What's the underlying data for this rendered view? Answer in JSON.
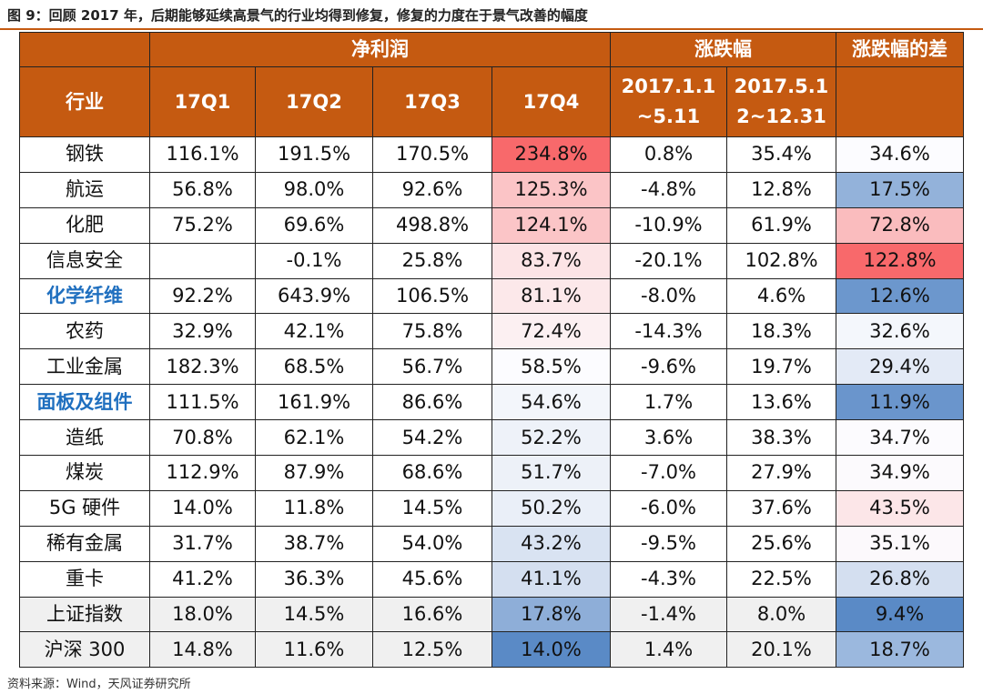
{
  "title": "图 9：回顾 2017 年，后期能够延续高景气的行业均得到修复，修复的力度在于景气改善的幅度",
  "source": "资料来源：Wind，天风证券研究所",
  "header": {
    "group_net_profit": "净利润",
    "group_change": "涨跌幅",
    "group_diff": "涨跌幅的差",
    "industry": "行业",
    "q1": "17Q1",
    "q2": "17Q2",
    "q3": "17Q3",
    "q4": "17Q4",
    "period1_line1": "2017.1.1",
    "period1_line2": "~5.11",
    "period2_line1": "2017.5.1",
    "period2_line2": "2~12.31"
  },
  "colors": {
    "header_bg": "#c55a11",
    "highlight_text": "#1f6fbf",
    "index_row_bg": "#f0f0f0"
  },
  "rows": [
    {
      "industry": "钢铁",
      "q1": "116.1%",
      "q2": "191.5%",
      "q3": "170.5%",
      "q4": "234.8%",
      "c1": "0.8%",
      "c2": "35.4%",
      "diff": "34.6%",
      "highlight": false,
      "index": false,
      "q4_color": "#f8696b",
      "diff_color": "#fcfcff"
    },
    {
      "industry": "航运",
      "q1": "56.8%",
      "q2": "98.0%",
      "q3": "92.6%",
      "q4": "125.3%",
      "c1": "-4.8%",
      "c2": "12.8%",
      "diff": "17.5%",
      "highlight": false,
      "index": false,
      "q4_color": "#fbc4c6",
      "diff_color": "#93b2da"
    },
    {
      "industry": "化肥",
      "q1": "75.2%",
      "q2": "69.6%",
      "q3": "498.8%",
      "q4": "124.1%",
      "c1": "-10.9%",
      "c2": "61.9%",
      "diff": "72.8%",
      "highlight": false,
      "index": false,
      "q4_color": "#fbc5c7",
      "diff_color": "#fabcbe"
    },
    {
      "industry": "信息安全",
      "q1": "",
      "q2": "-0.1%",
      "q3": "25.8%",
      "q4": "83.7%",
      "c1": "-20.1%",
      "c2": "102.8%",
      "diff": "122.8%",
      "highlight": false,
      "index": false,
      "q4_color": "#fce4e6",
      "diff_color": "#f8696b"
    },
    {
      "industry": "化学纤维",
      "q1": "92.2%",
      "q2": "643.9%",
      "q3": "106.5%",
      "q4": "81.1%",
      "c1": "-8.0%",
      "c2": "4.6%",
      "diff": "12.6%",
      "highlight": true,
      "index": false,
      "q4_color": "#fce8ea",
      "diff_color": "#6c97cd"
    },
    {
      "industry": "农药",
      "q1": "32.9%",
      "q2": "42.1%",
      "q3": "75.8%",
      "q4": "72.4%",
      "c1": "-14.3%",
      "c2": "18.3%",
      "diff": "32.6%",
      "highlight": false,
      "index": false,
      "q4_color": "#fcf0f2",
      "diff_color": "#f4f7fc"
    },
    {
      "industry": "工业金属",
      "q1": "182.3%",
      "q2": "68.5%",
      "q3": "56.7%",
      "q4": "58.5%",
      "c1": "-9.6%",
      "c2": "19.7%",
      "diff": "29.4%",
      "highlight": false,
      "index": false,
      "q4_color": "#fcfcff",
      "diff_color": "#e3eaf6"
    },
    {
      "industry": "面板及组件",
      "q1": "111.5%",
      "q2": "161.9%",
      "q3": "86.6%",
      "q4": "54.6%",
      "c1": "1.7%",
      "c2": "13.6%",
      "diff": "11.9%",
      "highlight": true,
      "index": false,
      "q4_color": "#f3f6fb",
      "diff_color": "#6a95cc"
    },
    {
      "industry": "造纸",
      "q1": "70.8%",
      "q2": "62.1%",
      "q3": "54.2%",
      "q4": "52.2%",
      "c1": "3.6%",
      "c2": "38.3%",
      "diff": "34.7%",
      "highlight": false,
      "index": false,
      "q4_color": "#eef2f9",
      "diff_color": "#fcfbfe"
    },
    {
      "industry": "煤炭",
      "q1": "112.9%",
      "q2": "87.9%",
      "q3": "68.6%",
      "q4": "51.7%",
      "c1": "-7.0%",
      "c2": "27.9%",
      "diff": "34.9%",
      "highlight": false,
      "index": false,
      "q4_color": "#edf1f8",
      "diff_color": "#fcfafd"
    },
    {
      "industry": "5G 硬件",
      "q1": "14.0%",
      "q2": "11.8%",
      "q3": "14.5%",
      "q4": "50.2%",
      "c1": "-6.0%",
      "c2": "37.6%",
      "diff": "43.5%",
      "highlight": false,
      "index": false,
      "q4_color": "#eaeff8",
      "diff_color": "#fce6e8"
    },
    {
      "industry": "稀有金属",
      "q1": "31.7%",
      "q2": "38.7%",
      "q3": "54.0%",
      "q4": "43.2%",
      "c1": "-9.5%",
      "c2": "25.6%",
      "diff": "35.1%",
      "highlight": false,
      "index": false,
      "q4_color": "#d9e3f2",
      "diff_color": "#fcf9fc"
    },
    {
      "industry": "重卡",
      "q1": "41.2%",
      "q2": "36.3%",
      "q3": "45.6%",
      "q4": "41.1%",
      "c1": "-4.3%",
      "c2": "22.5%",
      "diff": "26.8%",
      "highlight": false,
      "index": false,
      "q4_color": "#d4dff0",
      "diff_color": "#d4dff0"
    },
    {
      "industry": "上证指数",
      "q1": "18.0%",
      "q2": "14.5%",
      "q3": "16.6%",
      "q4": "17.8%",
      "c1": "-1.4%",
      "c2": "8.0%",
      "diff": "9.4%",
      "highlight": false,
      "index": true,
      "q4_color": "#8eaed8",
      "diff_color": "#5a8ac6"
    },
    {
      "industry": "沪深 300",
      "q1": "14.8%",
      "q2": "11.6%",
      "q3": "12.5%",
      "q4": "14.0%",
      "c1": "1.4%",
      "c2": "20.1%",
      "diff": "18.7%",
      "highlight": false,
      "index": true,
      "q4_color": "#5a8ac6",
      "diff_color": "#9bb8de"
    }
  ]
}
